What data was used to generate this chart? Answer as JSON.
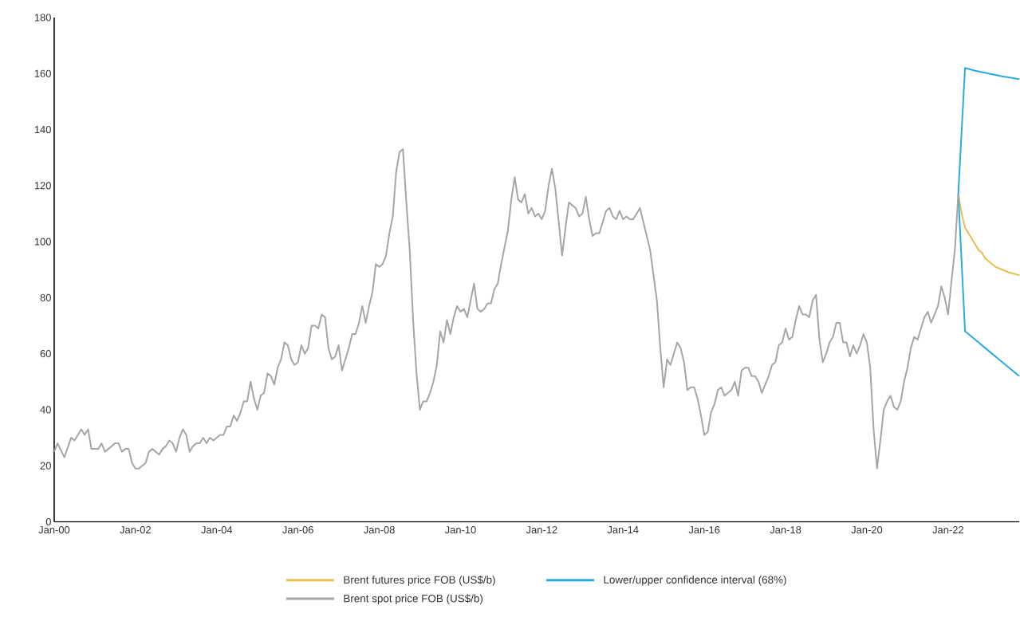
{
  "chart_data": {
    "type": "line",
    "xlim": [
      "2000-01",
      "2023-10"
    ],
    "ylim": [
      0,
      180
    ],
    "xticks": [
      {
        "value": "2000-01",
        "label": "Jan-00"
      },
      {
        "value": "2002-01",
        "label": "Jan-02"
      },
      {
        "value": "2004-01",
        "label": "Jan-04"
      },
      {
        "value": "2006-01",
        "label": "Jan-06"
      },
      {
        "value": "2008-01",
        "label": "Jan-08"
      },
      {
        "value": "2010-01",
        "label": "Jan-10"
      },
      {
        "value": "2012-01",
        "label": "Jan-12"
      },
      {
        "value": "2014-01",
        "label": "Jan-14"
      },
      {
        "value": "2016-01",
        "label": "Jan-16"
      },
      {
        "value": "2018-01",
        "label": "Jan-18"
      },
      {
        "value": "2020-01",
        "label": "Jan-20"
      },
      {
        "value": "2022-01",
        "label": "Jan-22"
      }
    ],
    "yticks": [
      0,
      20,
      40,
      60,
      80,
      100,
      120,
      140,
      160,
      180
    ],
    "grid": false,
    "legend": "bottom",
    "marker": "none",
    "line_style": "solid",
    "series": [
      {
        "name": "Brent futures price FOB (US$/b)",
        "color": "#e8c050",
        "x": [
          "2022-04",
          "2022-05",
          "2022-06",
          "2022-07",
          "2022-08",
          "2022-09",
          "2022-10",
          "2022-11",
          "2022-12",
          "2023-01",
          "2023-02",
          "2023-03",
          "2023-05",
          "2023-07",
          "2023-10"
        ],
        "values": [
          117,
          110,
          105,
          103,
          101,
          99,
          97,
          96,
          94,
          93,
          92,
          91,
          90,
          89,
          88
        ]
      },
      {
        "name": "Lower/upper confidence interval (68%)",
        "color": "#29abe2",
        "x": [
          "2023-10",
          "2023-07",
          "2023-04",
          "2022-12",
          "2022-09",
          "2022-06",
          "2022-04",
          "2022-06",
          "2022-09",
          "2023-01",
          "2023-05",
          "2023-10"
        ],
        "values": [
          52,
          55,
          58,
          62,
          65,
          68,
          117,
          162,
          161,
          160,
          159,
          158
        ]
      },
      {
        "name": "Brent spot price FOB (US$/b)",
        "color": "#a6a6a6",
        "x": [
          "2000-01",
          "2000-02",
          "2000-04",
          "2000-06",
          "2000-07",
          "2000-09",
          "2000-10",
          "2000-11",
          "2000-12",
          "2001-02",
          "2001-03",
          "2001-04",
          "2001-05",
          "2001-07",
          "2001-08",
          "2001-09",
          "2001-10",
          "2001-11",
          "2001-12",
          "2002-01",
          "2002-02",
          "2002-04",
          "2002-05",
          "2002-06",
          "2002-08",
          "2002-09",
          "2002-10",
          "2002-11",
          "2002-12",
          "2003-01",
          "2003-02",
          "2003-03",
          "2003-04",
          "2003-05",
          "2003-06",
          "2003-07",
          "2003-08",
          "2003-09",
          "2003-10",
          "2003-11",
          "2003-12",
          "2004-02",
          "2004-03",
          "2004-04",
          "2004-05",
          "2004-06",
          "2004-07",
          "2004-08",
          "2004-09",
          "2004-10",
          "2004-11",
          "2004-12",
          "2005-01",
          "2005-02",
          "2005-03",
          "2005-04",
          "2005-05",
          "2005-06",
          "2005-07",
          "2005-08",
          "2005-09",
          "2005-10",
          "2005-11",
          "2005-12",
          "2006-01",
          "2006-02",
          "2006-03",
          "2006-04",
          "2006-05",
          "2006-06",
          "2006-07",
          "2006-08",
          "2006-09",
          "2006-10",
          "2006-11",
          "2006-12",
          "2007-01",
          "2007-02",
          "2007-04",
          "2007-05",
          "2007-06",
          "2007-07",
          "2007-08",
          "2007-09",
          "2007-10",
          "2007-11",
          "2007-12",
          "2008-01",
          "2008-02",
          "2008-03",
          "2008-04",
          "2008-05",
          "2008-06",
          "2008-07",
          "2008-08",
          "2008-09",
          "2008-10",
          "2008-11",
          "2008-12",
          "2009-01",
          "2009-02",
          "2009-03",
          "2009-04",
          "2009-05",
          "2009-06",
          "2009-07",
          "2009-08",
          "2009-09",
          "2009-10",
          "2009-11",
          "2009-12",
          "2010-01",
          "2010-02",
          "2010-03",
          "2010-04",
          "2010-05",
          "2010-06",
          "2010-07",
          "2010-08",
          "2010-09",
          "2010-10",
          "2010-11",
          "2010-12",
          "2011-01",
          "2011-02",
          "2011-03",
          "2011-04",
          "2011-05",
          "2011-06",
          "2011-07",
          "2011-08",
          "2011-09",
          "2011-10",
          "2011-11",
          "2011-12",
          "2012-01",
          "2012-02",
          "2012-03",
          "2012-04",
          "2012-05",
          "2012-06",
          "2012-07",
          "2012-08",
          "2012-09",
          "2012-10",
          "2012-11",
          "2012-12",
          "2013-01",
          "2013-02",
          "2013-03",
          "2013-04",
          "2013-05",
          "2013-06",
          "2013-07",
          "2013-08",
          "2013-09",
          "2013-10",
          "2013-11",
          "2013-12",
          "2014-01",
          "2014-02",
          "2014-03",
          "2014-04",
          "2014-05",
          "2014-06",
          "2014-07",
          "2014-08",
          "2014-09",
          "2014-10",
          "2014-11",
          "2014-12",
          "2015-01",
          "2015-02",
          "2015-03",
          "2015-04",
          "2015-05",
          "2015-06",
          "2015-07",
          "2015-08",
          "2015-09",
          "2015-10",
          "2015-11",
          "2015-12",
          "2016-01",
          "2016-02",
          "2016-03",
          "2016-04",
          "2016-05",
          "2016-06",
          "2016-07",
          "2016-08",
          "2016-09",
          "2016-10",
          "2016-11",
          "2016-12",
          "2017-01",
          "2017-02",
          "2017-03",
          "2017-04",
          "2017-05",
          "2017-06",
          "2017-07",
          "2017-08",
          "2017-09",
          "2017-10",
          "2017-11",
          "2017-12",
          "2018-01",
          "2018-02",
          "2018-03",
          "2018-04",
          "2018-05",
          "2018-06",
          "2018-07",
          "2018-08",
          "2018-09",
          "2018-10",
          "2018-11",
          "2018-12",
          "2019-01",
          "2019-02",
          "2019-03",
          "2019-04",
          "2019-05",
          "2019-06",
          "2019-07",
          "2019-08",
          "2019-09",
          "2019-10",
          "2019-11",
          "2019-12",
          "2020-01",
          "2020-02",
          "2020-03",
          "2020-04",
          "2020-05",
          "2020-06",
          "2020-07",
          "2020-08",
          "2020-09",
          "2020-10",
          "2020-11",
          "2020-12",
          "2021-01",
          "2021-02",
          "2021-03",
          "2021-04",
          "2021-05",
          "2021-06",
          "2021-07",
          "2021-08",
          "2021-09",
          "2021-10",
          "2021-11",
          "2021-12",
          "2022-01",
          "2022-02",
          "2022-03",
          "2022-04"
        ],
        "values": [
          25,
          28,
          23,
          30,
          29,
          33,
          31,
          33,
          26,
          26,
          28,
          25,
          26,
          28,
          28,
          25,
          26,
          26,
          21,
          19,
          19,
          21,
          25,
          26,
          24,
          26,
          27,
          29,
          28,
          25,
          30,
          33,
          31,
          25,
          27,
          28,
          28,
          30,
          28,
          30,
          29,
          31,
          31,
          34,
          34,
          38,
          36,
          39,
          43,
          43,
          50,
          44,
          40,
          45,
          46,
          53,
          52,
          49,
          55,
          58,
          64,
          63,
          58,
          56,
          57,
          63,
          60,
          62,
          70,
          70,
          69,
          74,
          73,
          62,
          58,
          59,
          63,
          54,
          62,
          67,
          67,
          71,
          77,
          71,
          77,
          82,
          92,
          91,
          92,
          95,
          103,
          109,
          125,
          132,
          133,
          114,
          97,
          72,
          53,
          40,
          43,
          43,
          46,
          50,
          56,
          68,
          64,
          72,
          67,
          73,
          77,
          75,
          76,
          73,
          79,
          85,
          76,
          75,
          76,
          78,
          78,
          83,
          85,
          92,
          98,
          104,
          115,
          123,
          115,
          114,
          117,
          110,
          112,
          109,
          110,
          108,
          111,
          120,
          126,
          119,
          107,
          95,
          105,
          114,
          113,
          112,
          109,
          110,
          116,
          108,
          102,
          103,
          103,
          107,
          111,
          112,
          109,
          108,
          111,
          108,
          109,
          108,
          108,
          110,
          112,
          107,
          102,
          97,
          88,
          79,
          62,
          48,
          58,
          56,
          60,
          64,
          62,
          57,
          47,
          48,
          48,
          44,
          38,
          31,
          32,
          39,
          42,
          47,
          48,
          45,
          46,
          47,
          50,
          45,
          54,
          55,
          55,
          52,
          52,
          50,
          46,
          49,
          52,
          56,
          57,
          63,
          64,
          69,
          65,
          66,
          72,
          77,
          74,
          74,
          73,
          79,
          81,
          65,
          57,
          60,
          64,
          66,
          71,
          71,
          64,
          64,
          59,
          63,
          60,
          63,
          67,
          64,
          55,
          33,
          19,
          29,
          40,
          43,
          45,
          41,
          40,
          43,
          50,
          55,
          62,
          66,
          65,
          69,
          73,
          75,
          71,
          74,
          77,
          84,
          80,
          74,
          86,
          97,
          117
        ]
      }
    ]
  }
}
